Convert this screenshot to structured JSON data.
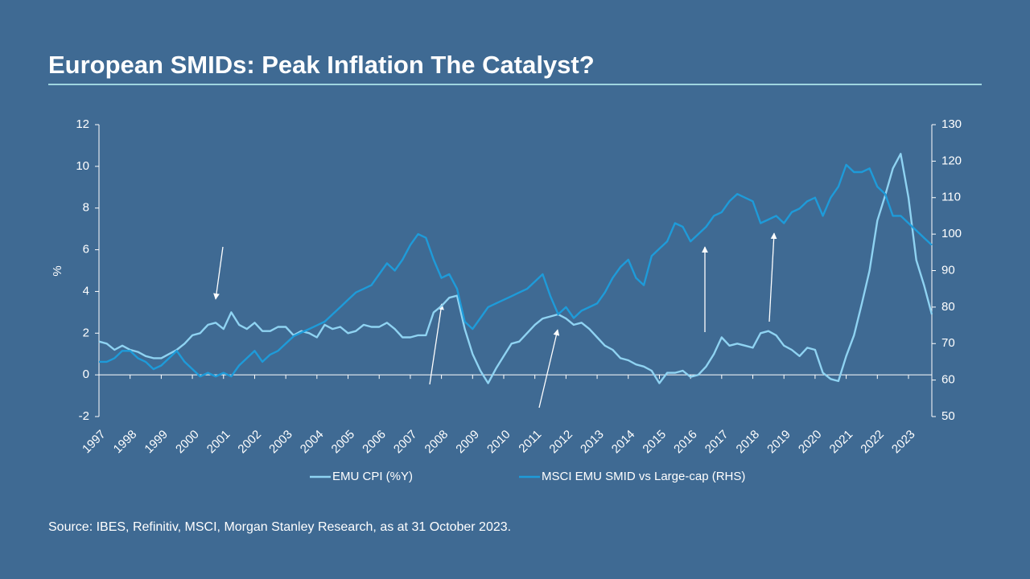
{
  "header": {
    "title": "European SMIDs: Peak Inflation The Catalyst?"
  },
  "chart_data": {
    "type": "line",
    "y_label": "%",
    "categories": [
      "1997",
      null,
      null,
      null,
      "1998",
      null,
      null,
      null,
      "1999",
      null,
      null,
      null,
      "2000",
      null,
      null,
      null,
      "2001",
      null,
      null,
      null,
      "2002",
      null,
      null,
      null,
      "2003",
      null,
      null,
      null,
      "2004",
      null,
      null,
      null,
      "2005",
      null,
      null,
      null,
      "2006",
      null,
      null,
      null,
      "2007",
      null,
      null,
      null,
      "2008",
      null,
      null,
      null,
      "2009",
      null,
      null,
      null,
      "2010",
      null,
      null,
      null,
      "2011",
      null,
      null,
      null,
      "2012",
      null,
      null,
      null,
      "2013",
      null,
      null,
      null,
      "2014",
      null,
      null,
      null,
      "2015",
      null,
      null,
      null,
      "2016",
      null,
      null,
      null,
      "2017",
      null,
      null,
      null,
      "2018",
      null,
      null,
      null,
      "2019",
      null,
      null,
      null,
      "2020",
      null,
      null,
      null,
      "2021",
      null,
      null,
      null,
      "2022",
      null,
      null,
      null,
      "2023",
      null,
      null,
      null
    ],
    "series": [
      {
        "name": "EMU CPI (%Y)",
        "color": "#8fd3f2",
        "axis": "y",
        "values": [
          1.6,
          1.5,
          1.2,
          1.4,
          1.2,
          1.1,
          0.9,
          0.8,
          0.8,
          1.0,
          1.2,
          1.5,
          1.9,
          2.0,
          2.4,
          2.5,
          2.2,
          3.0,
          2.4,
          2.2,
          2.5,
          2.1,
          2.1,
          2.3,
          2.3,
          1.9,
          2.1,
          2.0,
          1.8,
          2.4,
          2.2,
          2.3,
          2.0,
          2.1,
          2.4,
          2.3,
          2.3,
          2.5,
          2.2,
          1.8,
          1.8,
          1.9,
          1.9,
          3.0,
          3.3,
          3.7,
          3.8,
          2.2,
          1.0,
          0.2,
          -0.4,
          0.3,
          0.9,
          1.5,
          1.6,
          2.0,
          2.4,
          2.7,
          2.8,
          2.9,
          2.7,
          2.4,
          2.5,
          2.2,
          1.8,
          1.4,
          1.2,
          0.8,
          0.7,
          0.5,
          0.4,
          0.2,
          -0.4,
          0.1,
          0.1,
          0.2,
          -0.1,
          0.0,
          0.4,
          1.0,
          1.8,
          1.4,
          1.5,
          1.4,
          1.3,
          2.0,
          2.1,
          1.9,
          1.4,
          1.2,
          0.9,
          1.3,
          1.2,
          0.1,
          -0.2,
          -0.3,
          0.9,
          1.9,
          3.4,
          5.0,
          7.4,
          8.6,
          9.9,
          10.6,
          8.5,
          5.5,
          4.3,
          2.9
        ]
      },
      {
        "name": "MSCI EMU SMID vs Large-cap (RHS)",
        "color": "#1e9bd9",
        "axis": "y2",
        "values": [
          65,
          65,
          66,
          68,
          68,
          66,
          65,
          63,
          64,
          66,
          68,
          65,
          63,
          61,
          62,
          61,
          62,
          61,
          64,
          66,
          68,
          65,
          67,
          68,
          70,
          72,
          73,
          74,
          75,
          76,
          78,
          80,
          82,
          84,
          85,
          86,
          89,
          92,
          90,
          93,
          97,
          100,
          99,
          93,
          88,
          89,
          85,
          76,
          74,
          77,
          80,
          81,
          82,
          83,
          84,
          85,
          87,
          89,
          83,
          78,
          80,
          77,
          79,
          80,
          81,
          84,
          88,
          91,
          93,
          88,
          86,
          94,
          96,
          98,
          103,
          102,
          98,
          100,
          102,
          105,
          106,
          109,
          111,
          110,
          109,
          103,
          104,
          105,
          103,
          106,
          107,
          109,
          110,
          105,
          110,
          113,
          119,
          117,
          117,
          118,
          113,
          111,
          105,
          105,
          103,
          101,
          99,
          97
        ]
      }
    ],
    "ylim": [
      -2,
      12
    ],
    "yticks": [
      -2,
      0,
      2,
      4,
      6,
      8,
      10,
      12
    ],
    "y2lim": [
      50,
      130
    ],
    "y2ticks": [
      50,
      60,
      70,
      80,
      90,
      100,
      110,
      120,
      130
    ],
    "grid": false,
    "legend": "bottom"
  },
  "footer": {
    "source": "Source: IBES, Refinitiv, MSCI, Morgan Stanley Research, as at 31 October 2023."
  }
}
